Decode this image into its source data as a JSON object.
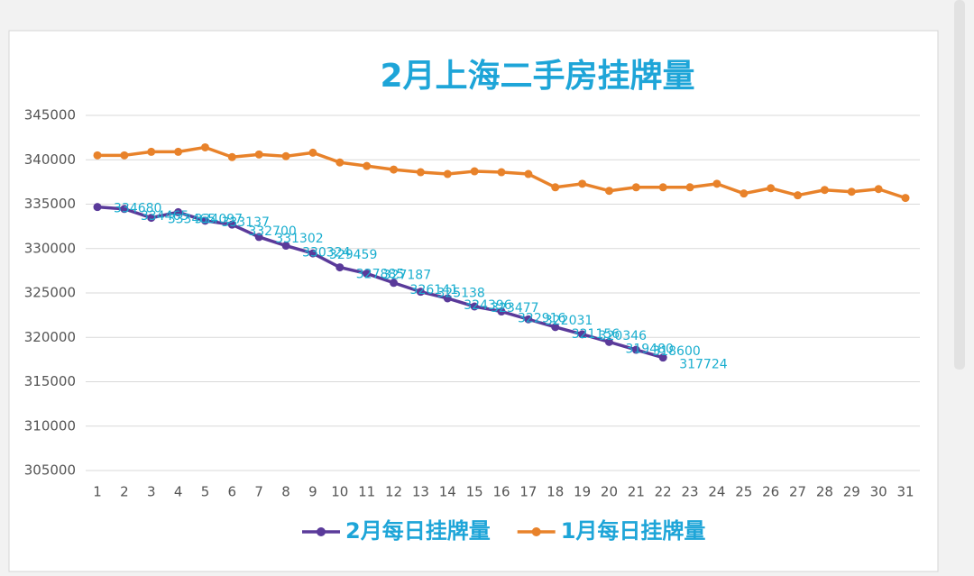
{
  "chart_data": {
    "type": "line",
    "title": "2月上海二手房挂牌量",
    "categories": [
      "1",
      "2",
      "3",
      "4",
      "5",
      "6",
      "7",
      "8",
      "9",
      "10",
      "11",
      "12",
      "13",
      "14",
      "15",
      "16",
      "17",
      "18",
      "19",
      "20",
      "21",
      "22",
      "23",
      "24",
      "25",
      "26",
      "27",
      "28",
      "29",
      "30",
      "31"
    ],
    "series": [
      {
        "name": "2月每日挂牌量",
        "color": "#5a3a9a",
        "data_labels": true,
        "values": [
          334680,
          334465,
          333465,
          334097,
          333137,
          332700,
          331302,
          330324,
          329459,
          327885,
          327187,
          326141,
          325138,
          324396,
          323477,
          322916,
          322031,
          321156,
          320346,
          319480,
          318600,
          317724,
          null,
          null,
          null,
          null,
          null,
          null,
          null,
          null,
          null
        ]
      },
      {
        "name": "1月每日挂牌量",
        "color": "#e8822a",
        "data_labels": false,
        "values": [
          340500,
          340500,
          340900,
          340900,
          341400,
          340300,
          340600,
          340400,
          340800,
          339700,
          339300,
          338900,
          338600,
          338400,
          338700,
          338600,
          338400,
          336900,
          337300,
          336500,
          336900,
          336900,
          336900,
          337300,
          336200,
          336800,
          336000,
          336600,
          336400,
          336700,
          335700
        ]
      }
    ],
    "ylim": [
      305000,
      345000
    ],
    "yticks": [
      305000,
      310000,
      315000,
      320000,
      325000,
      330000,
      335000,
      340000,
      345000
    ],
    "grid": true,
    "label_color": "#1aaecf",
    "title_color": "#1ea5d8",
    "legend": "bottom"
  }
}
